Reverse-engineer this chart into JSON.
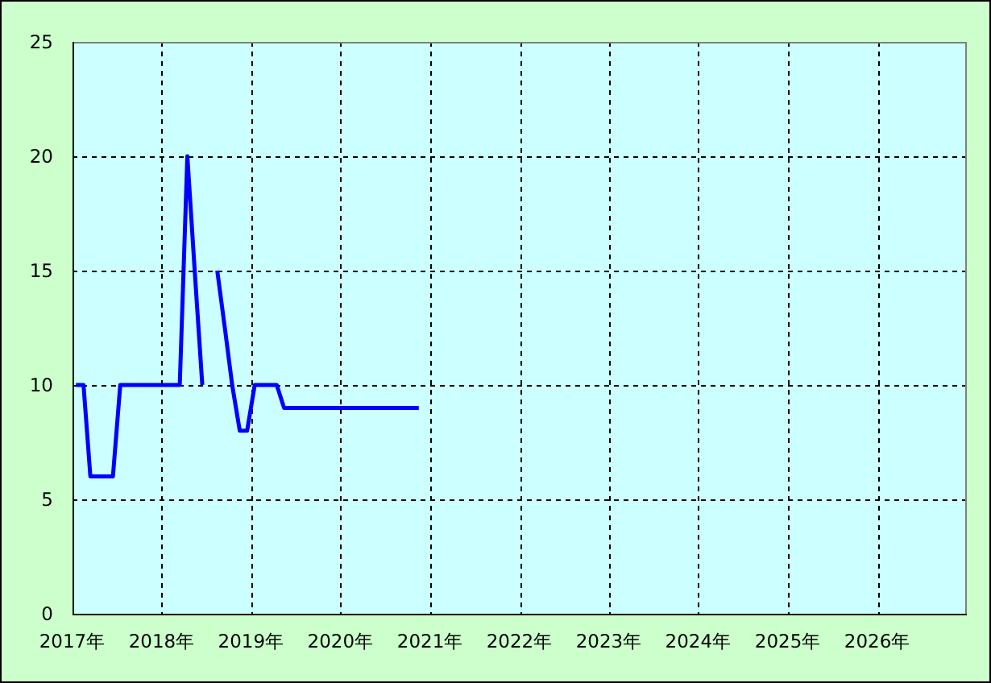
{
  "chart_data": {
    "type": "line",
    "x": [
      "2017-01-15",
      "2017-02-15",
      "2017-03-15",
      "2017-04-15",
      "2017-05-15",
      "2017-06-15",
      "2017-07-15",
      "2017-08-15",
      "2017-09-15",
      "2017-10-15",
      "2017-11-15",
      "2017-12-15",
      "2018-01-15",
      "2018-02-15",
      "2018-03-15",
      "2018-04-15",
      "2018-05-15",
      "2018-06-15",
      "2018-07-15",
      "2018-08-15",
      "2018-09-15",
      "2018-10-15",
      "2018-11-15",
      "2018-12-15",
      "2019-01-15",
      "2019-02-15",
      "2019-03-15",
      "2019-04-15",
      "2019-05-15",
      "2019-06-15",
      "2019-07-15",
      "2019-08-15",
      "2019-09-15",
      "2019-10-15",
      "2019-11-15",
      "2019-12-15",
      "2020-01-15",
      "2020-02-15",
      "2020-03-15",
      "2020-04-15",
      "2020-05-15",
      "2020-06-15",
      "2020-07-15",
      "2020-08-15",
      "2020-09-15",
      "2020-10-15",
      "2020-11-15"
    ],
    "series": [
      {
        "color": "#0000ff",
        "values": [
          10,
          10,
          6,
          6,
          6,
          6,
          10,
          10,
          10,
          10,
          10,
          10,
          10,
          10,
          10,
          20,
          15,
          10,
          null,
          15,
          12.5,
          10,
          8,
          8,
          10,
          10,
          10,
          10,
          9,
          9,
          9,
          9,
          9,
          9,
          9,
          9,
          9,
          9,
          9,
          9,
          9,
          9,
          9,
          9,
          9,
          9,
          9
        ]
      }
    ],
    "xlim": [
      "2017",
      "2027"
    ],
    "xticks": [
      {
        "value": "2017",
        "label": "2017年"
      },
      {
        "value": "2018",
        "label": "2018年"
      },
      {
        "value": "2019",
        "label": "2019年"
      },
      {
        "value": "2020",
        "label": "2020年"
      },
      {
        "value": "2021",
        "label": "2021年"
      },
      {
        "value": "2022",
        "label": "2022年"
      },
      {
        "value": "2023",
        "label": "2023年"
      },
      {
        "value": "2024",
        "label": "2024年"
      },
      {
        "value": "2025",
        "label": "2025年"
      },
      {
        "value": "2026",
        "label": "2026年"
      }
    ],
    "ylim": [
      0,
      25
    ],
    "yticks": [
      0,
      5,
      10,
      15,
      20,
      25
    ],
    "grid": true,
    "line_style": "solid"
  }
}
